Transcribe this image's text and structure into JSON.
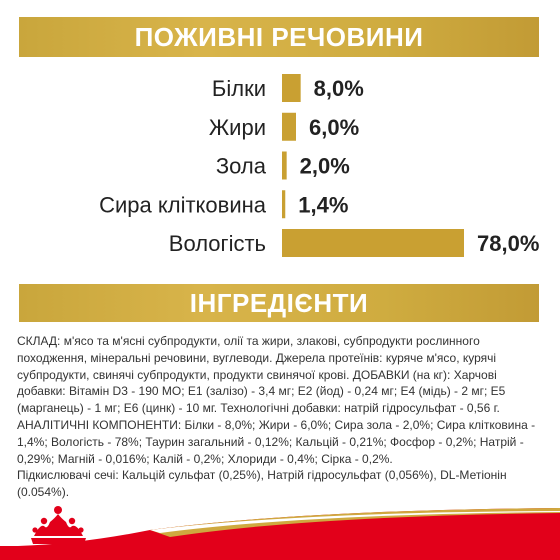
{
  "headers": {
    "nutrients": "ПОЖИВНІ РЕЧОВИНИ",
    "ingredients": "ІНГРЕДІЄНТИ"
  },
  "chart_data": {
    "type": "bar",
    "orientation": "horizontal",
    "categories": [
      "Білки",
      "Жири",
      "Зола",
      "Сира клітковина",
      "Вологість"
    ],
    "values": [
      8.0,
      6.0,
      2.0,
      1.4,
      78.0
    ],
    "value_labels": [
      "8,0%",
      "6,0%",
      "2,0%",
      "1,4%",
      "78,0%"
    ],
    "unit": "%",
    "bar_color": "#c9a032"
  },
  "ingredients": {
    "composition": "СКЛАД: м'ясо та м'ясні субпродукти, олії та жири, злакові, субпродукти  рослинного походження, мінеральні речовини, вуглеводи. Джерела протеїнів: куряче м'ясо, курячі субпродукти, свинячі субпродукти, продукти свинячої крові. ДОБАВКИ (на кг): Харчові добавки: Вітамін D3 - 190 МО; E1 (залізо) - 3,4 мг; E2 (йод) - 0,24 мг; E4 (мідь) - 2 мг; E5 (марганець) - 1 мг; E6 (цинк) - 10 мг. Технологічні добавки: натрій гідросульфат - 0,56 г. АНАЛІТИЧНІ КОМПОНЕНТИ: Білки - 8,0%; Жири - 6,0%; Сира зола - 2,0%; Сира клітковина - 1,4%; Вологість - 78%; Таурин загальний - 0,12%; Кальцій - 0,21%; Фосфор - 0,2%; Натрій - 0,29%; Магній - 0,016%; Калій - 0,2%; Хлориди - 0,4%; Сірка - 0,2%.",
    "acidifiers": "Підкислювачі сечі: Кальцій сульфат (0,25%), Натрій гідросульфат (0,056%), DL-Метіонін (0.054%)."
  },
  "colors": {
    "banner": "#d1ad42",
    "brand_red": "#e2001a",
    "text": "#222222"
  },
  "logo": {
    "icon": "crown-icon"
  }
}
